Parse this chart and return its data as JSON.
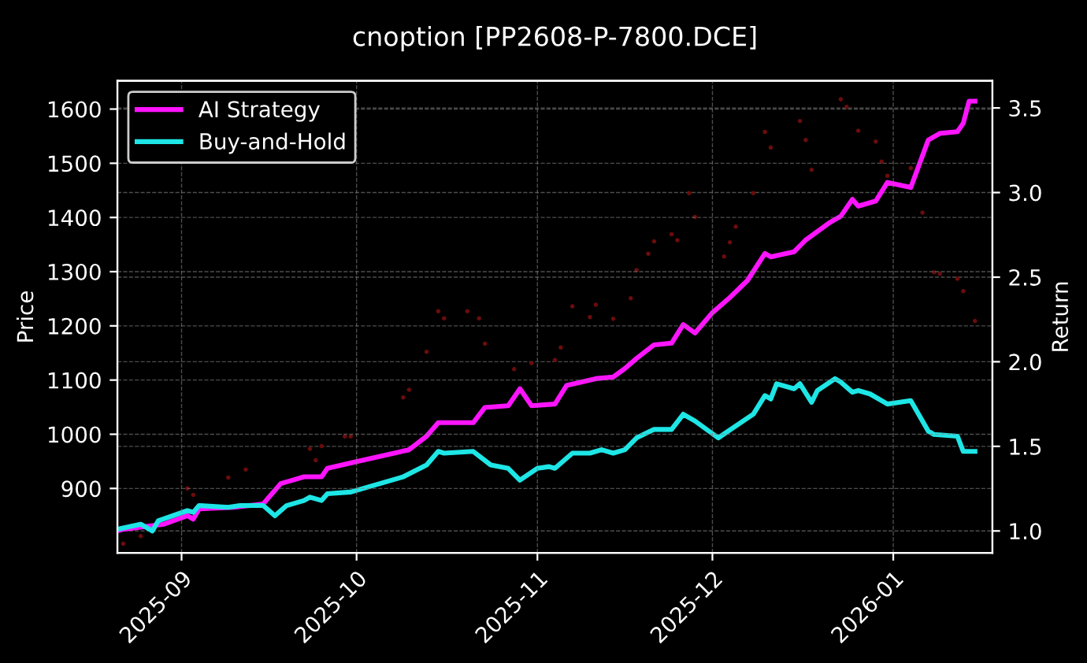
{
  "chart_data": {
    "type": "line",
    "title": "cnoption [PP2608-P-7800.DCE]",
    "ylabel": "Price",
    "y2label": "Return",
    "xlim": [
      "2025-08-21",
      "2026-01-18"
    ],
    "xticks": [
      {
        "value": "2025-09-01",
        "label": "2025-09"
      },
      {
        "value": "2025-10-01",
        "label": "2025-10"
      },
      {
        "value": "2025-11-01",
        "label": "2025-11"
      },
      {
        "value": "2025-12-01",
        "label": "2025-12"
      },
      {
        "value": "2026-01-01",
        "label": "2026-01"
      }
    ],
    "ylim": [
      781,
      1652
    ],
    "yticks": [
      900,
      1000,
      1100,
      1200,
      1300,
      1400,
      1500,
      1600
    ],
    "y2lim": [
      0.87,
      3.66
    ],
    "y2ticks": [
      {
        "value": 1,
        "label": "1.0"
      },
      {
        "value": 1.5,
        "label": "1.5"
      },
      {
        "value": 2,
        "label": "2.0"
      },
      {
        "value": 2.5,
        "label": "2.5"
      },
      {
        "value": 3,
        "label": "3.0"
      },
      {
        "value": 3.5,
        "label": "3.5"
      }
    ],
    "grid": true,
    "legend": "top left",
    "line_style": "solid",
    "marker": "none",
    "series": [
      {
        "type": "scatter",
        "color": "#6b0c0c",
        "x": [
          "2025-08-22",
          "2025-08-25",
          "2025-09-02",
          "2025-09-03",
          "2025-09-09",
          "2025-09-12",
          "2025-09-23",
          "2025-09-24",
          "2025-09-25",
          "2025-09-29",
          "2025-09-30",
          "2025-10-09",
          "2025-10-10",
          "2025-10-13",
          "2025-10-15",
          "2025-10-16",
          "2025-10-20",
          "2025-10-22",
          "2025-10-23",
          "2025-10-28",
          "2025-10-31",
          "2025-11-04",
          "2025-11-05",
          "2025-11-07",
          "2025-11-10",
          "2025-11-11",
          "2025-11-14",
          "2025-11-17",
          "2025-11-18",
          "2025-11-20",
          "2025-11-21",
          "2025-11-24",
          "2025-11-25",
          "2025-11-27",
          "2025-11-28",
          "2025-12-03",
          "2025-12-04",
          "2025-12-05",
          "2025-12-08",
          "2025-12-10",
          "2025-12-11",
          "2025-12-16",
          "2025-12-17",
          "2025-12-18",
          "2025-12-23",
          "2025-12-24",
          "2025-12-26",
          "2025-12-29",
          "2025-12-30",
          "2025-12-31",
          "2026-01-04",
          "2026-01-06",
          "2026-01-08",
          "2026-01-09",
          "2026-01-12",
          "2026-01-13",
          "2026-01-15"
        ],
        "values": [
          798,
          812,
          900,
          888,
          920,
          935,
          973,
          952,
          978,
          996,
          996,
          1068,
          1082,
          1152,
          1227,
          1214,
          1227,
          1214,
          1167,
          1120,
          1131,
          1137,
          1160,
          1236,
          1216,
          1239,
          1213,
          1251,
          1303,
          1333,
          1356,
          1369,
          1358,
          1445,
          1401,
          1328,
          1354,
          1383,
          1445,
          1558,
          1529,
          1578,
          1543,
          1488,
          1618,
          1604,
          1560,
          1540,
          1503,
          1477,
          1491,
          1409,
          1299,
          1296,
          1287,
          1264,
          1209
        ]
      },
      {
        "name": "AI Strategy",
        "color": "#ff14ff",
        "axis": "y2",
        "x": [
          "2025-08-21",
          "2025-08-22",
          "2025-08-29",
          "2025-09-02",
          "2025-09-03",
          "2025-09-04",
          "2025-09-10",
          "2025-09-15",
          "2025-09-16",
          "2025-09-18",
          "2025-09-20",
          "2025-09-22",
          "2025-09-25",
          "2025-09-26",
          "2025-10-01",
          "2025-10-10",
          "2025-10-13",
          "2025-10-15",
          "2025-10-21",
          "2025-10-23",
          "2025-10-27",
          "2025-10-29",
          "2025-10-31",
          "2025-11-04",
          "2025-11-06",
          "2025-11-11",
          "2025-11-14",
          "2025-11-16",
          "2025-11-18",
          "2025-11-21",
          "2025-11-24",
          "2025-11-26",
          "2025-11-28",
          "2025-12-01",
          "2025-12-04",
          "2025-12-07",
          "2025-12-10",
          "2025-12-11",
          "2025-12-15",
          "2025-12-17",
          "2025-12-21",
          "2025-12-23",
          "2025-12-25",
          "2025-12-26",
          "2025-12-29",
          "2025-12-31",
          "2026-01-04",
          "2026-01-07",
          "2026-01-09",
          "2026-01-12",
          "2026-01-13",
          "2026-01-14",
          "2026-01-15"
        ],
        "values": [
          1.0,
          1.01,
          1.04,
          1.09,
          1.07,
          1.13,
          1.14,
          1.16,
          1.2,
          1.28,
          1.3,
          1.32,
          1.32,
          1.37,
          1.41,
          1.48,
          1.56,
          1.64,
          1.64,
          1.73,
          1.74,
          1.84,
          1.74,
          1.75,
          1.86,
          1.9,
          1.91,
          1.96,
          2.02,
          2.1,
          2.11,
          2.22,
          2.17,
          2.29,
          2.38,
          2.48,
          2.64,
          2.62,
          2.65,
          2.72,
          2.82,
          2.86,
          2.96,
          2.92,
          2.95,
          3.06,
          3.03,
          3.31,
          3.35,
          3.36,
          3.41,
          3.54,
          3.54
        ]
      },
      {
        "name": "Buy-and-Hold",
        "color": "#1ee6e6",
        "axis": "y2",
        "x": [
          "2025-08-21",
          "2025-08-25",
          "2025-08-27",
          "2025-08-28",
          "2025-09-02",
          "2025-09-03",
          "2025-09-04",
          "2025-09-09",
          "2025-09-11",
          "2025-09-15",
          "2025-09-17",
          "2025-09-19",
          "2025-09-22",
          "2025-09-23",
          "2025-09-25",
          "2025-09-26",
          "2025-09-30",
          "2025-10-09",
          "2025-10-13",
          "2025-10-15",
          "2025-10-16",
          "2025-10-21",
          "2025-10-24",
          "2025-10-27",
          "2025-10-29",
          "2025-11-01",
          "2025-11-03",
          "2025-11-04",
          "2025-11-07",
          "2025-11-10",
          "2025-11-12",
          "2025-11-14",
          "2025-11-16",
          "2025-11-18",
          "2025-11-21",
          "2025-11-24",
          "2025-11-26",
          "2025-11-28",
          "2025-12-02",
          "2025-12-05",
          "2025-12-08",
          "2025-12-10",
          "2025-12-11",
          "2025-12-12",
          "2025-12-15",
          "2025-12-16",
          "2025-12-18",
          "2025-12-19",
          "2025-12-22",
          "2025-12-23",
          "2025-12-25",
          "2025-12-26",
          "2025-12-28",
          "2025-12-31",
          "2026-01-04",
          "2026-01-07",
          "2026-01-08",
          "2026-01-12",
          "2026-01-13",
          "2026-01-15"
        ],
        "values": [
          1.01,
          1.04,
          1.0,
          1.06,
          1.12,
          1.11,
          1.15,
          1.14,
          1.15,
          1.15,
          1.09,
          1.15,
          1.18,
          1.2,
          1.18,
          1.22,
          1.23,
          1.32,
          1.39,
          1.47,
          1.46,
          1.47,
          1.39,
          1.37,
          1.3,
          1.37,
          1.38,
          1.37,
          1.46,
          1.46,
          1.48,
          1.46,
          1.48,
          1.55,
          1.6,
          1.6,
          1.69,
          1.65,
          1.55,
          1.62,
          1.69,
          1.8,
          1.78,
          1.87,
          1.84,
          1.87,
          1.76,
          1.83,
          1.9,
          1.88,
          1.82,
          1.83,
          1.81,
          1.75,
          1.77,
          1.59,
          1.57,
          1.56,
          1.47,
          1.47
        ]
      }
    ]
  }
}
